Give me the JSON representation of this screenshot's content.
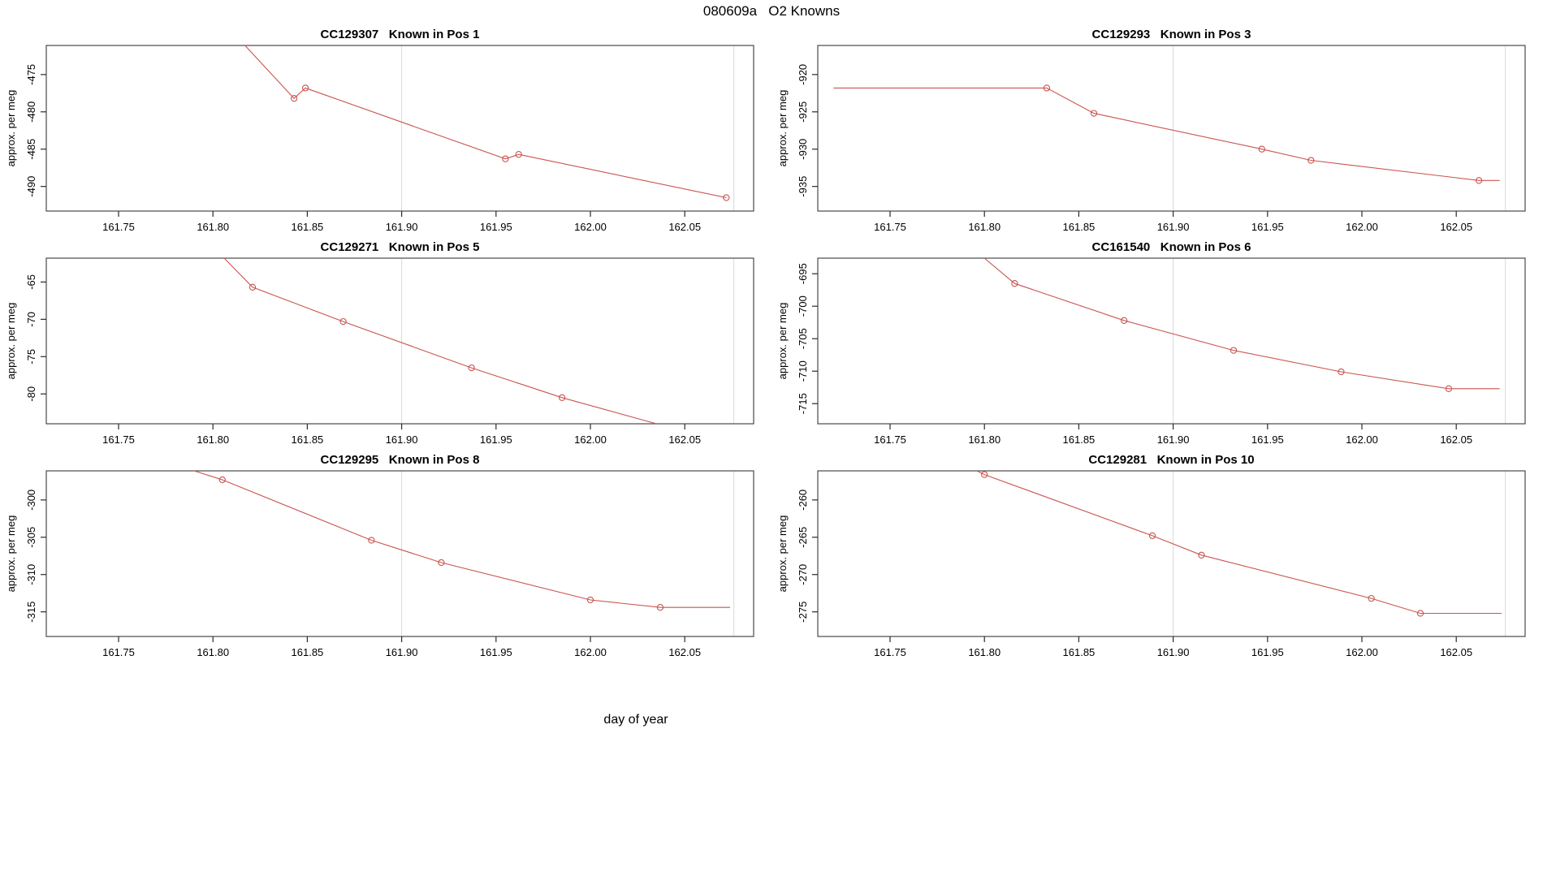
{
  "page_title": "080609a   O2 Knowns",
  "xlabel": "day of year",
  "ylabel": "approx. per meg",
  "colors": {
    "line": "#c9544f",
    "grid": "#d9d9d9",
    "box": "#4a4a4a",
    "tick": "#2a2a2a",
    "text": "#000000",
    "background": "#ffffff"
  },
  "x_axis": {
    "ticks": [
      161.75,
      161.8,
      161.85,
      161.9,
      161.95,
      162.0,
      162.05
    ],
    "tick_labels": [
      "161.75",
      "161.80",
      "161.85",
      "161.90",
      "161.95",
      "162.00",
      "162.05"
    ],
    "xlim": [
      161.7117,
      162.0865
    ],
    "gridlines": [
      161.9,
      162.076
    ]
  },
  "chart_data": [
    {
      "type": "line",
      "title": "CC129307   Known in Pos 1",
      "sample_id": "CC129307",
      "position_label": "Known in Pos 1",
      "ylabel": "approx. per meg",
      "yticks": [
        -475,
        -480,
        -485,
        -490
      ],
      "ylim": [
        -493.3,
        -471.1
      ],
      "line": [
        [
          161.817,
          -471.1
        ],
        [
          161.843,
          -478.2
        ],
        [
          161.849,
          -476.8
        ],
        [
          161.955,
          -486.3
        ],
        [
          161.962,
          -485.7
        ],
        [
          162.072,
          -491.5
        ]
      ],
      "markers": [
        [
          161.843,
          -478.2
        ],
        [
          161.849,
          -476.8
        ],
        [
          161.955,
          -486.3
        ],
        [
          161.962,
          -485.7
        ],
        [
          162.072,
          -491.5
        ]
      ]
    },
    {
      "type": "line",
      "title": "CC129293   Known in Pos 3",
      "sample_id": "CC129293",
      "position_label": "Known in Pos 3",
      "ylabel": "approx. per meg",
      "yticks": [
        -920,
        -925,
        -930,
        -935
      ],
      "ylim": [
        -938.3,
        -916.1
      ],
      "line": [
        [
          161.72,
          -921.8
        ],
        [
          161.833,
          -921.8
        ],
        [
          161.858,
          -925.2
        ],
        [
          161.947,
          -930.0
        ],
        [
          161.973,
          -931.5
        ],
        [
          162.062,
          -934.2
        ],
        [
          162.073,
          -934.2
        ]
      ],
      "markers": [
        [
          161.833,
          -921.8
        ],
        [
          161.858,
          -925.2
        ],
        [
          161.947,
          -930.0
        ],
        [
          161.973,
          -931.5
        ],
        [
          162.062,
          -934.2
        ]
      ]
    },
    {
      "type": "line",
      "title": "CC129271   Known in Pos 5",
      "sample_id": "CC129271",
      "position_label": "Known in Pos 5",
      "ylabel": "approx. per meg",
      "yticks": [
        -65,
        -70,
        -75,
        -80
      ],
      "ylim": [
        -84.0,
        -61.8
      ],
      "line": [
        [
          161.806,
          -61.8
        ],
        [
          161.821,
          -65.7
        ],
        [
          161.869,
          -70.3
        ],
        [
          161.937,
          -76.5
        ],
        [
          161.985,
          -80.5
        ],
        [
          162.035,
          -84.0
        ]
      ],
      "markers": [
        [
          161.821,
          -65.7
        ],
        [
          161.869,
          -70.3
        ],
        [
          161.937,
          -76.5
        ],
        [
          161.985,
          -80.5
        ]
      ]
    },
    {
      "type": "line",
      "title": "CC161540   Known in Pos 6",
      "sample_id": "CC161540",
      "position_label": "Known in Pos 6",
      "ylabel": "approx. per meg",
      "yticks": [
        -695,
        -700,
        -705,
        -710,
        -715
      ],
      "ylim": [
        -718.1,
        -692.6
      ],
      "line": [
        [
          161.8,
          -692.6
        ],
        [
          161.816,
          -696.5
        ],
        [
          161.874,
          -702.2
        ],
        [
          161.932,
          -706.8
        ],
        [
          161.989,
          -710.1
        ],
        [
          162.046,
          -712.7
        ],
        [
          162.073,
          -712.7
        ]
      ],
      "markers": [
        [
          161.816,
          -696.5
        ],
        [
          161.874,
          -702.2
        ],
        [
          161.932,
          -706.8
        ],
        [
          161.989,
          -710.1
        ],
        [
          162.046,
          -712.7
        ]
      ]
    },
    {
      "type": "line",
      "title": "CC129295   Known in Pos 8",
      "sample_id": "CC129295",
      "position_label": "Known in Pos 8",
      "ylabel": "approx. per meg",
      "yticks": [
        -300,
        -305,
        -310,
        -315
      ],
      "ylim": [
        -318.3,
        -296.1
      ],
      "line": [
        [
          161.79,
          -296.1
        ],
        [
          161.805,
          -297.3
        ],
        [
          161.884,
          -305.4
        ],
        [
          161.921,
          -308.4
        ],
        [
          162.0,
          -313.4
        ],
        [
          162.037,
          -314.4
        ],
        [
          162.074,
          -314.4
        ]
      ],
      "markers": [
        [
          161.805,
          -297.3
        ],
        [
          161.884,
          -305.4
        ],
        [
          161.921,
          -308.4
        ],
        [
          162.0,
          -313.4
        ],
        [
          162.037,
          -314.4
        ]
      ]
    },
    {
      "type": "line",
      "title": "CC129281   Known in Pos 10",
      "sample_id": "CC129281",
      "position_label": "Known in Pos 10",
      "ylabel": "approx. per meg",
      "yticks": [
        -260,
        -265,
        -270,
        -275
      ],
      "ylim": [
        -278.3,
        -256.1
      ],
      "line": [
        [
          161.796,
          -256.1
        ],
        [
          161.8,
          -256.6
        ],
        [
          161.889,
          -264.8
        ],
        [
          161.915,
          -267.4
        ],
        [
          162.005,
          -273.2
        ],
        [
          162.031,
          -275.2
        ],
        [
          162.074,
          -275.2
        ]
      ],
      "markers": [
        [
          161.8,
          -256.6
        ],
        [
          161.889,
          -264.8
        ],
        [
          161.915,
          -267.4
        ],
        [
          162.005,
          -273.2
        ],
        [
          162.031,
          -275.2
        ]
      ]
    }
  ]
}
